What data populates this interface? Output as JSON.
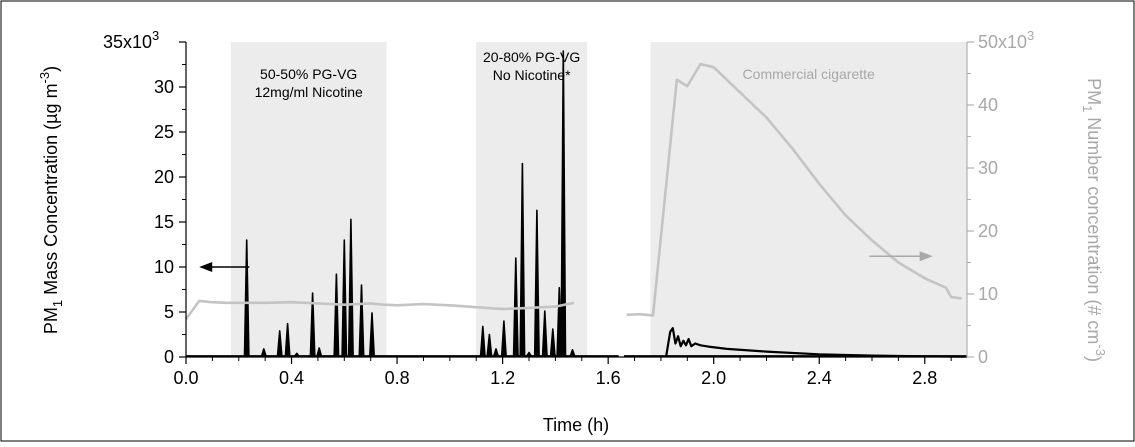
{
  "chart_data": {
    "type": "line",
    "title": "",
    "xlabel": "Time (h)",
    "ylabel": {
      "base": "PM",
      "sub": "1",
      "rest": " Mass Concentration (µg m",
      "sup": "-3",
      "end": ")"
    },
    "y2label": {
      "base": "PM",
      "sub": "1",
      "rest": " Number concentration (# cm",
      "sup": "-3",
      "end": ")"
    },
    "xlim": [
      0,
      2.96
    ],
    "ylim": [
      0,
      35000
    ],
    "y2lim": [
      0,
      50000
    ],
    "grid": false,
    "legend": "none",
    "xticks": [
      {
        "value": 0.0,
        "label": "0.0"
      },
      {
        "value": 0.4,
        "label": "0.4"
      },
      {
        "value": 0.8,
        "label": "0.8"
      },
      {
        "value": 1.2,
        "label": "1.2"
      },
      {
        "value": 1.6,
        "label": "1.6"
      },
      {
        "value": 2.0,
        "label": "2.0"
      },
      {
        "value": 2.4,
        "label": "2.4"
      },
      {
        "value": 2.8,
        "label": "2.8"
      }
    ],
    "yticks": [
      {
        "value": 0,
        "label": "0"
      },
      {
        "value": 5000,
        "label": "5"
      },
      {
        "value": 10000,
        "label": "10"
      },
      {
        "value": 15000,
        "label": "15"
      },
      {
        "value": 20000,
        "label": "20"
      },
      {
        "value": 25000,
        "label": "25"
      },
      {
        "value": 30000,
        "label": "30"
      },
      {
        "value": 35000,
        "label": "35x10",
        "sup": "3"
      }
    ],
    "y2ticks": [
      {
        "value": 0,
        "label": "0"
      },
      {
        "value": 10000,
        "label": "10"
      },
      {
        "value": 20000,
        "label": "20"
      },
      {
        "value": 30000,
        "label": "30"
      },
      {
        "value": 40000,
        "label": "40"
      },
      {
        "value": 50000,
        "label": "50x10",
        "sup": "3"
      }
    ],
    "shaded_regions": [
      {
        "x": [
          0.17,
          0.76
        ],
        "lines": [
          "50-50% PG-VG",
          "12mg/ml Nicotine"
        ],
        "label_color": "#000000"
      },
      {
        "x": [
          1.1,
          1.52
        ],
        "lines": [
          "20-80% PG-VG",
          "No Nicotine*"
        ],
        "label_color": "#000000"
      },
      {
        "x": [
          1.76,
          2.96
        ],
        "lines": [
          "Commercial cigarette"
        ],
        "label_color": "#a8a8a8"
      }
    ],
    "series": [
      {
        "axis": "left",
        "color": "#000000",
        "style": "peaks",
        "baseline": 100,
        "segments": [
          [
            0.0,
            1.64
          ],
          [
            1.66,
            2.96
          ]
        ],
        "peaks": [
          {
            "x": 0.23,
            "y": 13000
          },
          {
            "x": 0.295,
            "y": 900
          },
          {
            "x": 0.355,
            "y": 2900
          },
          {
            "x": 0.385,
            "y": 3700
          },
          {
            "x": 0.42,
            "y": 400
          },
          {
            "x": 0.48,
            "y": 7100
          },
          {
            "x": 0.505,
            "y": 1000
          },
          {
            "x": 0.57,
            "y": 9200
          },
          {
            "x": 0.6,
            "y": 13000
          },
          {
            "x": 0.625,
            "y": 15300
          },
          {
            "x": 0.665,
            "y": 8000
          },
          {
            "x": 0.705,
            "y": 4900
          },
          {
            "x": 1.125,
            "y": 3400
          },
          {
            "x": 1.15,
            "y": 2500
          },
          {
            "x": 1.175,
            "y": 900
          },
          {
            "x": 1.205,
            "y": 4000
          },
          {
            "x": 1.25,
            "y": 11000
          },
          {
            "x": 1.275,
            "y": 21500
          },
          {
            "x": 1.3,
            "y": 500
          },
          {
            "x": 1.33,
            "y": 16300
          },
          {
            "x": 1.36,
            "y": 5100
          },
          {
            "x": 1.39,
            "y": 3100
          },
          {
            "x": 1.415,
            "y": 7700
          },
          {
            "x": 1.43,
            "y": 34000
          },
          {
            "x": 1.465,
            "y": 800
          }
        ],
        "decay": [
          [
            1.82,
            100
          ],
          [
            1.835,
            2800
          ],
          [
            1.845,
            3200
          ],
          [
            1.855,
            1500
          ],
          [
            1.865,
            2300
          ],
          [
            1.875,
            1200
          ],
          [
            1.885,
            1800
          ],
          [
            1.895,
            1300
          ],
          [
            1.905,
            2000
          ],
          [
            1.915,
            1200
          ],
          [
            1.93,
            1500
          ],
          [
            1.95,
            1300
          ],
          [
            1.98,
            1150
          ],
          [
            2.05,
            900
          ],
          [
            2.2,
            600
          ],
          [
            2.4,
            300
          ],
          [
            2.6,
            150
          ],
          [
            2.8,
            80
          ],
          [
            2.95,
            50
          ]
        ]
      },
      {
        "axis": "right",
        "color": "#c4c4c4",
        "style": "line",
        "segments": [
          [
            [
              0.0,
              6000
            ],
            [
              0.05,
              8900
            ],
            [
              0.1,
              8700
            ],
            [
              0.15,
              8600
            ],
            [
              0.2,
              8600
            ],
            [
              0.3,
              8600
            ],
            [
              0.4,
              8700
            ],
            [
              0.5,
              8500
            ],
            [
              0.6,
              8300
            ],
            [
              0.7,
              8500
            ],
            [
              0.75,
              8300
            ],
            [
              0.8,
              8200
            ],
            [
              0.85,
              8300
            ],
            [
              0.9,
              8400
            ],
            [
              1.0,
              8200
            ],
            [
              1.1,
              7900
            ],
            [
              1.2,
              7600
            ],
            [
              1.3,
              7800
            ],
            [
              1.4,
              8000
            ],
            [
              1.47,
              8600
            ]
          ],
          [
            [
              1.67,
              6700
            ],
            [
              1.72,
              6800
            ],
            [
              1.77,
              6600
            ],
            [
              1.86,
              44000
            ],
            [
              1.9,
              43000
            ],
            [
              1.95,
              46500
            ],
            [
              2.0,
              46000
            ],
            [
              2.1,
              42000
            ],
            [
              2.2,
              38000
            ],
            [
              2.3,
              33000
            ],
            [
              2.4,
              27500
            ],
            [
              2.5,
              22500
            ],
            [
              2.6,
              18500
            ],
            [
              2.7,
              15000
            ],
            [
              2.8,
              12500
            ],
            [
              2.88,
              11000
            ],
            [
              2.9,
              9500
            ],
            [
              2.94,
              9300
            ]
          ]
        ]
      }
    ],
    "annotations": [
      {
        "type": "arrow",
        "from": [
          0.24,
          10000
        ],
        "to": [
          0.05,
          10000
        ],
        "color": "#000000",
        "axis": "left"
      },
      {
        "type": "arrow",
        "from": [
          2.59,
          16000
        ],
        "to": [
          2.83,
          16000
        ],
        "color": "#a8a8a8",
        "axis": "right"
      }
    ]
  }
}
